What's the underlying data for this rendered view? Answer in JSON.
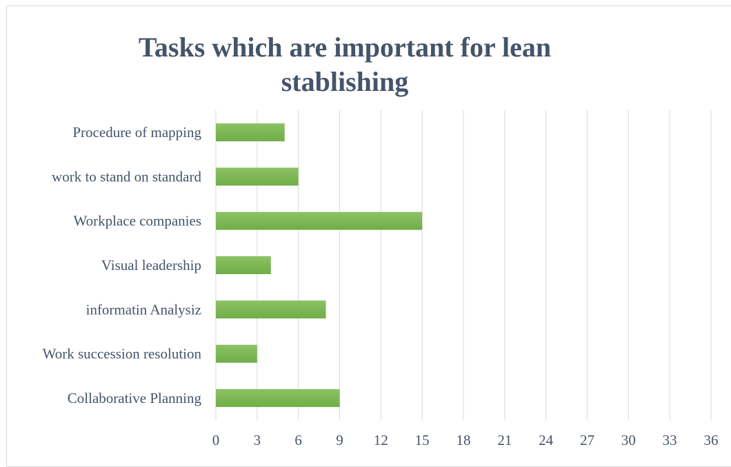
{
  "chart_data": {
    "type": "bar",
    "orientation": "horizontal",
    "title": "Tasks which are important for lean stablishing",
    "categories": [
      "Procedure of  mapping",
      "work to stand on standard",
      "Workplace companies",
      "Visual leadership",
      "informatin Analysiz",
      "Work succession resolution",
      "Collaborative Planning"
    ],
    "values": [
      5,
      6,
      15,
      4,
      8,
      3,
      9
    ],
    "xlim": [
      0,
      36
    ],
    "xticks": [
      0,
      3,
      6,
      9,
      12,
      15,
      18,
      21,
      24,
      27,
      30,
      33,
      36
    ],
    "grid": true,
    "bar_color": "#70ad47",
    "bar_color_light": "#8cc265",
    "grid_color": "#d9d9d9",
    "text_color": "#44546a"
  }
}
